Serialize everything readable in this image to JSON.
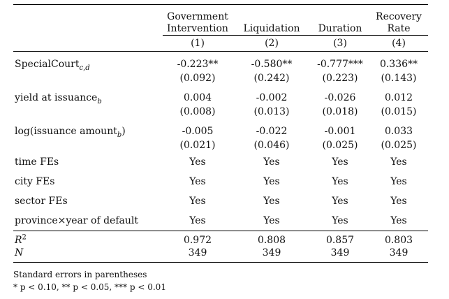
{
  "columns": [
    {
      "header_lines": [
        "Government",
        "Intervention"
      ],
      "number": "(1)"
    },
    {
      "header_lines": [
        "",
        "Liquidation"
      ],
      "number": "(2)"
    },
    {
      "header_lines": [
        "",
        "Duration"
      ],
      "number": "(3)"
    },
    {
      "header_lines": [
        "Recovery",
        "Rate"
      ],
      "number": "(4)"
    }
  ],
  "coef_rows": [
    {
      "label": "SpecialCourt",
      "label_sub": "c,d",
      "coefs": [
        "-0.223**",
        "-0.580**",
        "-0.777***",
        "0.336**"
      ],
      "ses": [
        "(0.092)",
        "(0.242)",
        "(0.223)",
        "(0.143)"
      ]
    },
    {
      "label": "yield at issuance",
      "label_sub": "b",
      "coefs": [
        "0.004",
        "-0.002",
        "-0.026",
        "0.012"
      ],
      "ses": [
        "(0.008)",
        "(0.013)",
        "(0.018)",
        "(0.015)"
      ]
    },
    {
      "label": "log(issuance amount",
      "label_sub": "b",
      "label_suffix": ")",
      "coefs": [
        "-0.005",
        "-0.022",
        "-0.001",
        "0.033"
      ],
      "ses": [
        "(0.021)",
        "(0.046)",
        "(0.025)",
        "(0.025)"
      ]
    }
  ],
  "fe_rows": [
    {
      "label": "time FEs",
      "values": [
        "Yes",
        "Yes",
        "Yes",
        "Yes"
      ]
    },
    {
      "label": "city FEs",
      "values": [
        "Yes",
        "Yes",
        "Yes",
        "Yes"
      ]
    },
    {
      "label": "sector FEs",
      "values": [
        "Yes",
        "Yes",
        "Yes",
        "Yes"
      ]
    },
    {
      "label": "province×year of default",
      "values": [
        "Yes",
        "Yes",
        "Yes",
        "Yes"
      ]
    }
  ],
  "stats": [
    {
      "label": "R",
      "label_sup": "2",
      "values": [
        "0.972",
        "0.808",
        "0.857",
        "0.803"
      ]
    },
    {
      "label": "N",
      "values": [
        "349",
        "349",
        "349",
        "349"
      ]
    }
  ],
  "notes": {
    "line1": "Standard errors in parentheses",
    "line2": "* p < 0.10, ** p < 0.05, *** p < 0.01"
  }
}
